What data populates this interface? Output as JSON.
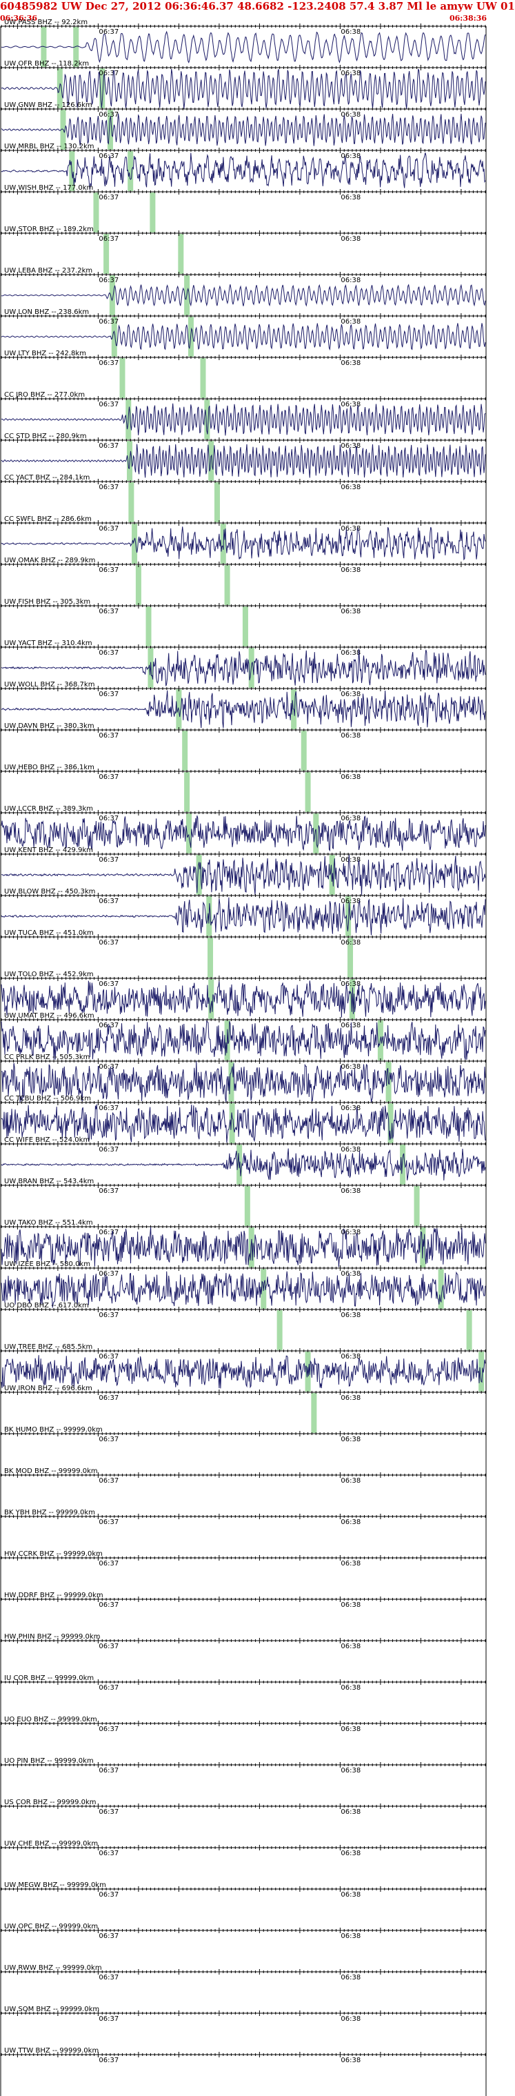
{
  "header": {
    "title": "60485982 UW Dec 27, 2012 06:36:46.37    48.6682 -123.2408 57.4 3.87 Ml le amyw UW 01",
    "start_time": "06:36:36",
    "end_time": "06:38:36"
  },
  "colors": {
    "title": "#d40000",
    "trace": "#1a1a66",
    "pick": "#a8dca8",
    "axis": "#000000"
  },
  "chart_data": {
    "type": "line",
    "title": "60485982 UW Dec 27, 2012 06:36:46.37    48.6682 -123.2408 57.4 3.87 Ml le amyw UW 01",
    "x_range": [
      "06:36:36",
      "06:38:36"
    ],
    "x_tick_labels": [
      "06:37",
      "06:38"
    ],
    "x_tick_values_sec": [
      24,
      84
    ],
    "grid": false,
    "channels": [
      {
        "label": "UW PASS BHZ -- 92.2km",
        "p_pick_sec": 10.5,
        "s_pick_sec": 18.5,
        "onset_sec": 21,
        "amp": 0.85,
        "period": 2.2,
        "noise": 0.08
      },
      {
        "label": "UW OFR BHZ -- 118.2km",
        "p_pick_sec": 14.5,
        "s_pick_sec": 25,
        "onset_sec": 14,
        "amp": 1.1,
        "period": 1.2,
        "noise": 0.12
      },
      {
        "label": "UW GNW BHZ -- 126.6km",
        "p_pick_sec": 15.3,
        "s_pick_sec": 27,
        "onset_sec": 15.5,
        "amp": 0.9,
        "period": 1.0,
        "noise": 0.08
      },
      {
        "label": "UW MRBL BHZ -- 130.2km",
        "p_pick_sec": 17.5,
        "s_pick_sec": 32,
        "onset_sec": 16,
        "amp": 0.9,
        "period": 2.0,
        "noise": 0.5
      },
      {
        "label": "UW WISH BHZ -- 177.0km",
        "p_pick_sec": 23.5,
        "s_pick_sec": 37.5,
        "onset_sec": null,
        "amp": 0,
        "period": 2,
        "noise": 0
      },
      {
        "label": "UW STOR BHZ -- 189.2km",
        "p_pick_sec": 26,
        "s_pick_sec": 44.5,
        "onset_sec": null,
        "amp": 0,
        "period": 2,
        "noise": 0
      },
      {
        "label": "UW LEBA BHZ -- 237.2km",
        "p_pick_sec": 27.5,
        "s_pick_sec": 46,
        "onset_sec": 26,
        "amp": 0.6,
        "period": 1.3,
        "noise": 0.05
      },
      {
        "label": "UW LON BHZ -- 238.6km",
        "p_pick_sec": 28,
        "s_pick_sec": 47,
        "onset_sec": 27,
        "amp": 0.75,
        "period": 1.2,
        "noise": 0.05
      },
      {
        "label": "UW LTY BHZ -- 242.8km",
        "p_pick_sec": 30,
        "s_pick_sec": 50,
        "onset_sec": null,
        "amp": 0,
        "period": 2,
        "noise": 0
      },
      {
        "label": "CC JRO BHZ -- 277.0km",
        "p_pick_sec": 31.5,
        "s_pick_sec": 51,
        "onset_sec": 30,
        "amp": 0.9,
        "period": 0.9,
        "noise": 0.04
      },
      {
        "label": "CC STD BHZ -- 280.9km",
        "p_pick_sec": 31.8,
        "s_pick_sec": 52,
        "onset_sec": 31,
        "amp": 0.95,
        "period": 0.8,
        "noise": 0.03
      },
      {
        "label": "CC YACT BHZ -- 284.1km",
        "p_pick_sec": 32.2,
        "s_pick_sec": 53.5,
        "onset_sec": null,
        "amp": 0,
        "period": 2,
        "noise": 0
      },
      {
        "label": "CC SWFL BHZ -- 286.6km",
        "p_pick_sec": 33,
        "s_pick_sec": 55,
        "onset_sec": 32,
        "amp": 0.8,
        "period": 1.5,
        "noise": 0.6
      },
      {
        "label": "UW OMAK BHZ -- 289.9km",
        "p_pick_sec": 34,
        "s_pick_sec": 56,
        "onset_sec": null,
        "amp": 0,
        "period": 2,
        "noise": 0
      },
      {
        "label": "UW FISH BHZ -- 305.3km",
        "p_pick_sec": 36.5,
        "s_pick_sec": 60.5,
        "onset_sec": null,
        "amp": 0,
        "period": 2,
        "noise": 0
      },
      {
        "label": "UW YACT BHZ -- 310.4km",
        "p_pick_sec": 37,
        "s_pick_sec": 62,
        "onset_sec": 35,
        "amp": 0.85,
        "period": 1.1,
        "noise": 0.75
      },
      {
        "label": "UW WOLL BHZ -- 368.7km",
        "p_pick_sec": 44,
        "s_pick_sec": 72.5,
        "onset_sec": 36,
        "amp": 0.85,
        "period": 1.1,
        "noise": 0.75
      },
      {
        "label": "UW DAVN BHZ -- 380.3km",
        "p_pick_sec": 45.5,
        "s_pick_sec": 75,
        "onset_sec": null,
        "amp": 0,
        "period": 2,
        "noise": 0
      },
      {
        "label": "UW HEBO BHZ -- 386.1km",
        "p_pick_sec": 46,
        "s_pick_sec": 76,
        "onset_sec": null,
        "amp": 0,
        "period": 2,
        "noise": 0
      },
      {
        "label": "UW LCCR BHZ -- 389.3km",
        "p_pick_sec": 46.5,
        "s_pick_sec": 78,
        "onset_sec": 0,
        "amp": 0.75,
        "period": 3.5,
        "noise": 0.9
      },
      {
        "label": "UW KENT BHZ -- 429.9km",
        "p_pick_sec": 49,
        "s_pick_sec": 82,
        "onset_sec": 43,
        "amp": 0.9,
        "period": 1.2,
        "noise": 0.7
      },
      {
        "label": "UW BLOW BHZ -- 450.3km",
        "p_pick_sec": 51.5,
        "s_pick_sec": 86,
        "onset_sec": 43,
        "amp": 0.9,
        "period": 1.2,
        "noise": 0.7
      },
      {
        "label": "UW TUCA BHZ -- 451.0km",
        "p_pick_sec": 51.8,
        "s_pick_sec": 86.5,
        "onset_sec": null,
        "amp": 0,
        "period": 2,
        "noise": 0
      },
      {
        "label": "UW TOLO BHZ -- 452.9km",
        "p_pick_sec": 52,
        "s_pick_sec": 87,
        "onset_sec": 0,
        "amp": 0.8,
        "period": 3.2,
        "noise": 0.9
      },
      {
        "label": "UW UMAT BHZ -- 496.6km",
        "p_pick_sec": 56,
        "s_pick_sec": 94,
        "onset_sec": 0,
        "amp": 0.85,
        "period": 3.0,
        "noise": 0.9
      },
      {
        "label": "CC PRLK BHZ -- 505.3km",
        "p_pick_sec": 57,
        "s_pick_sec": 96,
        "onset_sec": 0,
        "amp": 0.85,
        "period": 3.0,
        "noise": 0.95
      },
      {
        "label": "CC TCBU BHZ -- 506.9km",
        "p_pick_sec": 57.2,
        "s_pick_sec": 96.5,
        "onset_sec": 0,
        "amp": 0.8,
        "period": 3.4,
        "noise": 0.95
      },
      {
        "label": "CC WIFE BHZ -- 524.0km",
        "p_pick_sec": 59,
        "s_pick_sec": 99.5,
        "onset_sec": 55,
        "amp": 0.7,
        "period": 1.8,
        "noise": 0.85
      },
      {
        "label": "UW BRAN BHZ -- 543.4km",
        "p_pick_sec": 61,
        "s_pick_sec": 103,
        "onset_sec": null,
        "amp": 0,
        "period": 2,
        "noise": 0
      },
      {
        "label": "UW TAKO BHZ -- 551.4km",
        "p_pick_sec": 62,
        "s_pick_sec": 104.5,
        "onset_sec": 0,
        "amp": 0.85,
        "period": 3.2,
        "noise": 0.95
      },
      {
        "label": "UW IZEE BHZ -- 580.0km",
        "p_pick_sec": 65,
        "s_pick_sec": 109,
        "onset_sec": 0,
        "amp": 0.8,
        "period": 3.0,
        "noise": 0.95
      },
      {
        "label": "UO DBO BHZ -- 617.0km",
        "p_pick_sec": 69,
        "s_pick_sec": 116,
        "onset_sec": null,
        "amp": 0,
        "period": 2,
        "noise": 0
      },
      {
        "label": "UW TREE BHZ -- 685.5km",
        "p_pick_sec": 76,
        "s_pick_sec": 119,
        "onset_sec": 0,
        "amp": 0.7,
        "period": 3.6,
        "noise": 0.95
      },
      {
        "label": "UW IRON BHZ -- 696.6km",
        "p_pick_sec": 77.5,
        "s_pick_sec": null,
        "onset_sec": null,
        "amp": 0,
        "period": 2,
        "noise": 0
      },
      {
        "label": "BK HUMO BHZ -- 99999.0km",
        "p_pick_sec": null,
        "s_pick_sec": null,
        "onset_sec": null,
        "amp": 0,
        "period": 2,
        "noise": 0
      },
      {
        "label": "BK MOD BHZ -- 99999.0km",
        "p_pick_sec": null,
        "s_pick_sec": null,
        "onset_sec": null,
        "amp": 0,
        "period": 2,
        "noise": 0
      },
      {
        "label": "BK YBH BHZ -- 99999.0km",
        "p_pick_sec": null,
        "s_pick_sec": null,
        "onset_sec": null,
        "amp": 0,
        "period": 2,
        "noise": 0
      },
      {
        "label": "HW CCRK BHZ -- 99999.0km",
        "p_pick_sec": null,
        "s_pick_sec": null,
        "onset_sec": null,
        "amp": 0,
        "period": 2,
        "noise": 0
      },
      {
        "label": "HW DDRF BHZ -- 99999.0km",
        "p_pick_sec": null,
        "s_pick_sec": null,
        "onset_sec": null,
        "amp": 0,
        "period": 2,
        "noise": 0
      },
      {
        "label": "HW PHIN BHZ -- 99999.0km",
        "p_pick_sec": null,
        "s_pick_sec": null,
        "onset_sec": null,
        "amp": 0,
        "period": 2,
        "noise": 0
      },
      {
        "label": "IU COR BHZ -- 99999.0km",
        "p_pick_sec": null,
        "s_pick_sec": null,
        "onset_sec": null,
        "amp": 0,
        "period": 2,
        "noise": 0
      },
      {
        "label": "UO EUO BHZ -- 99999.0km",
        "p_pick_sec": null,
        "s_pick_sec": null,
        "onset_sec": null,
        "amp": 0,
        "period": 2,
        "noise": 0
      },
      {
        "label": "UO PIN BHZ -- 99999.0km",
        "p_pick_sec": null,
        "s_pick_sec": null,
        "onset_sec": null,
        "amp": 0,
        "period": 2,
        "noise": 0
      },
      {
        "label": "US COR BHZ -- 99999.0km",
        "p_pick_sec": null,
        "s_pick_sec": null,
        "onset_sec": null,
        "amp": 0,
        "period": 2,
        "noise": 0
      },
      {
        "label": "UW CHE BHZ -- 99999.0km",
        "p_pick_sec": null,
        "s_pick_sec": null,
        "onset_sec": null,
        "amp": 0,
        "period": 2,
        "noise": 0
      },
      {
        "label": "UW MEGW BHZ -- 99999.0km",
        "p_pick_sec": null,
        "s_pick_sec": null,
        "onset_sec": null,
        "amp": 0,
        "period": 2,
        "noise": 0
      },
      {
        "label": "UW OPC BHZ -- 99999.0km",
        "p_pick_sec": null,
        "s_pick_sec": null,
        "onset_sec": null,
        "amp": 0,
        "period": 2,
        "noise": 0
      },
      {
        "label": "UW RWW BHZ -- 99999.0km",
        "p_pick_sec": null,
        "s_pick_sec": null,
        "onset_sec": null,
        "amp": 0,
        "period": 2,
        "noise": 0
      },
      {
        "label": "UW SQM BHZ -- 99999.0km",
        "p_pick_sec": null,
        "s_pick_sec": null,
        "onset_sec": null,
        "amp": 0,
        "period": 2,
        "noise": 0
      },
      {
        "label": "UW TTW BHZ -- 99999.0km",
        "p_pick_sec": null,
        "s_pick_sec": null,
        "onset_sec": null,
        "amp": 0,
        "period": 2,
        "noise": 0
      }
    ]
  }
}
